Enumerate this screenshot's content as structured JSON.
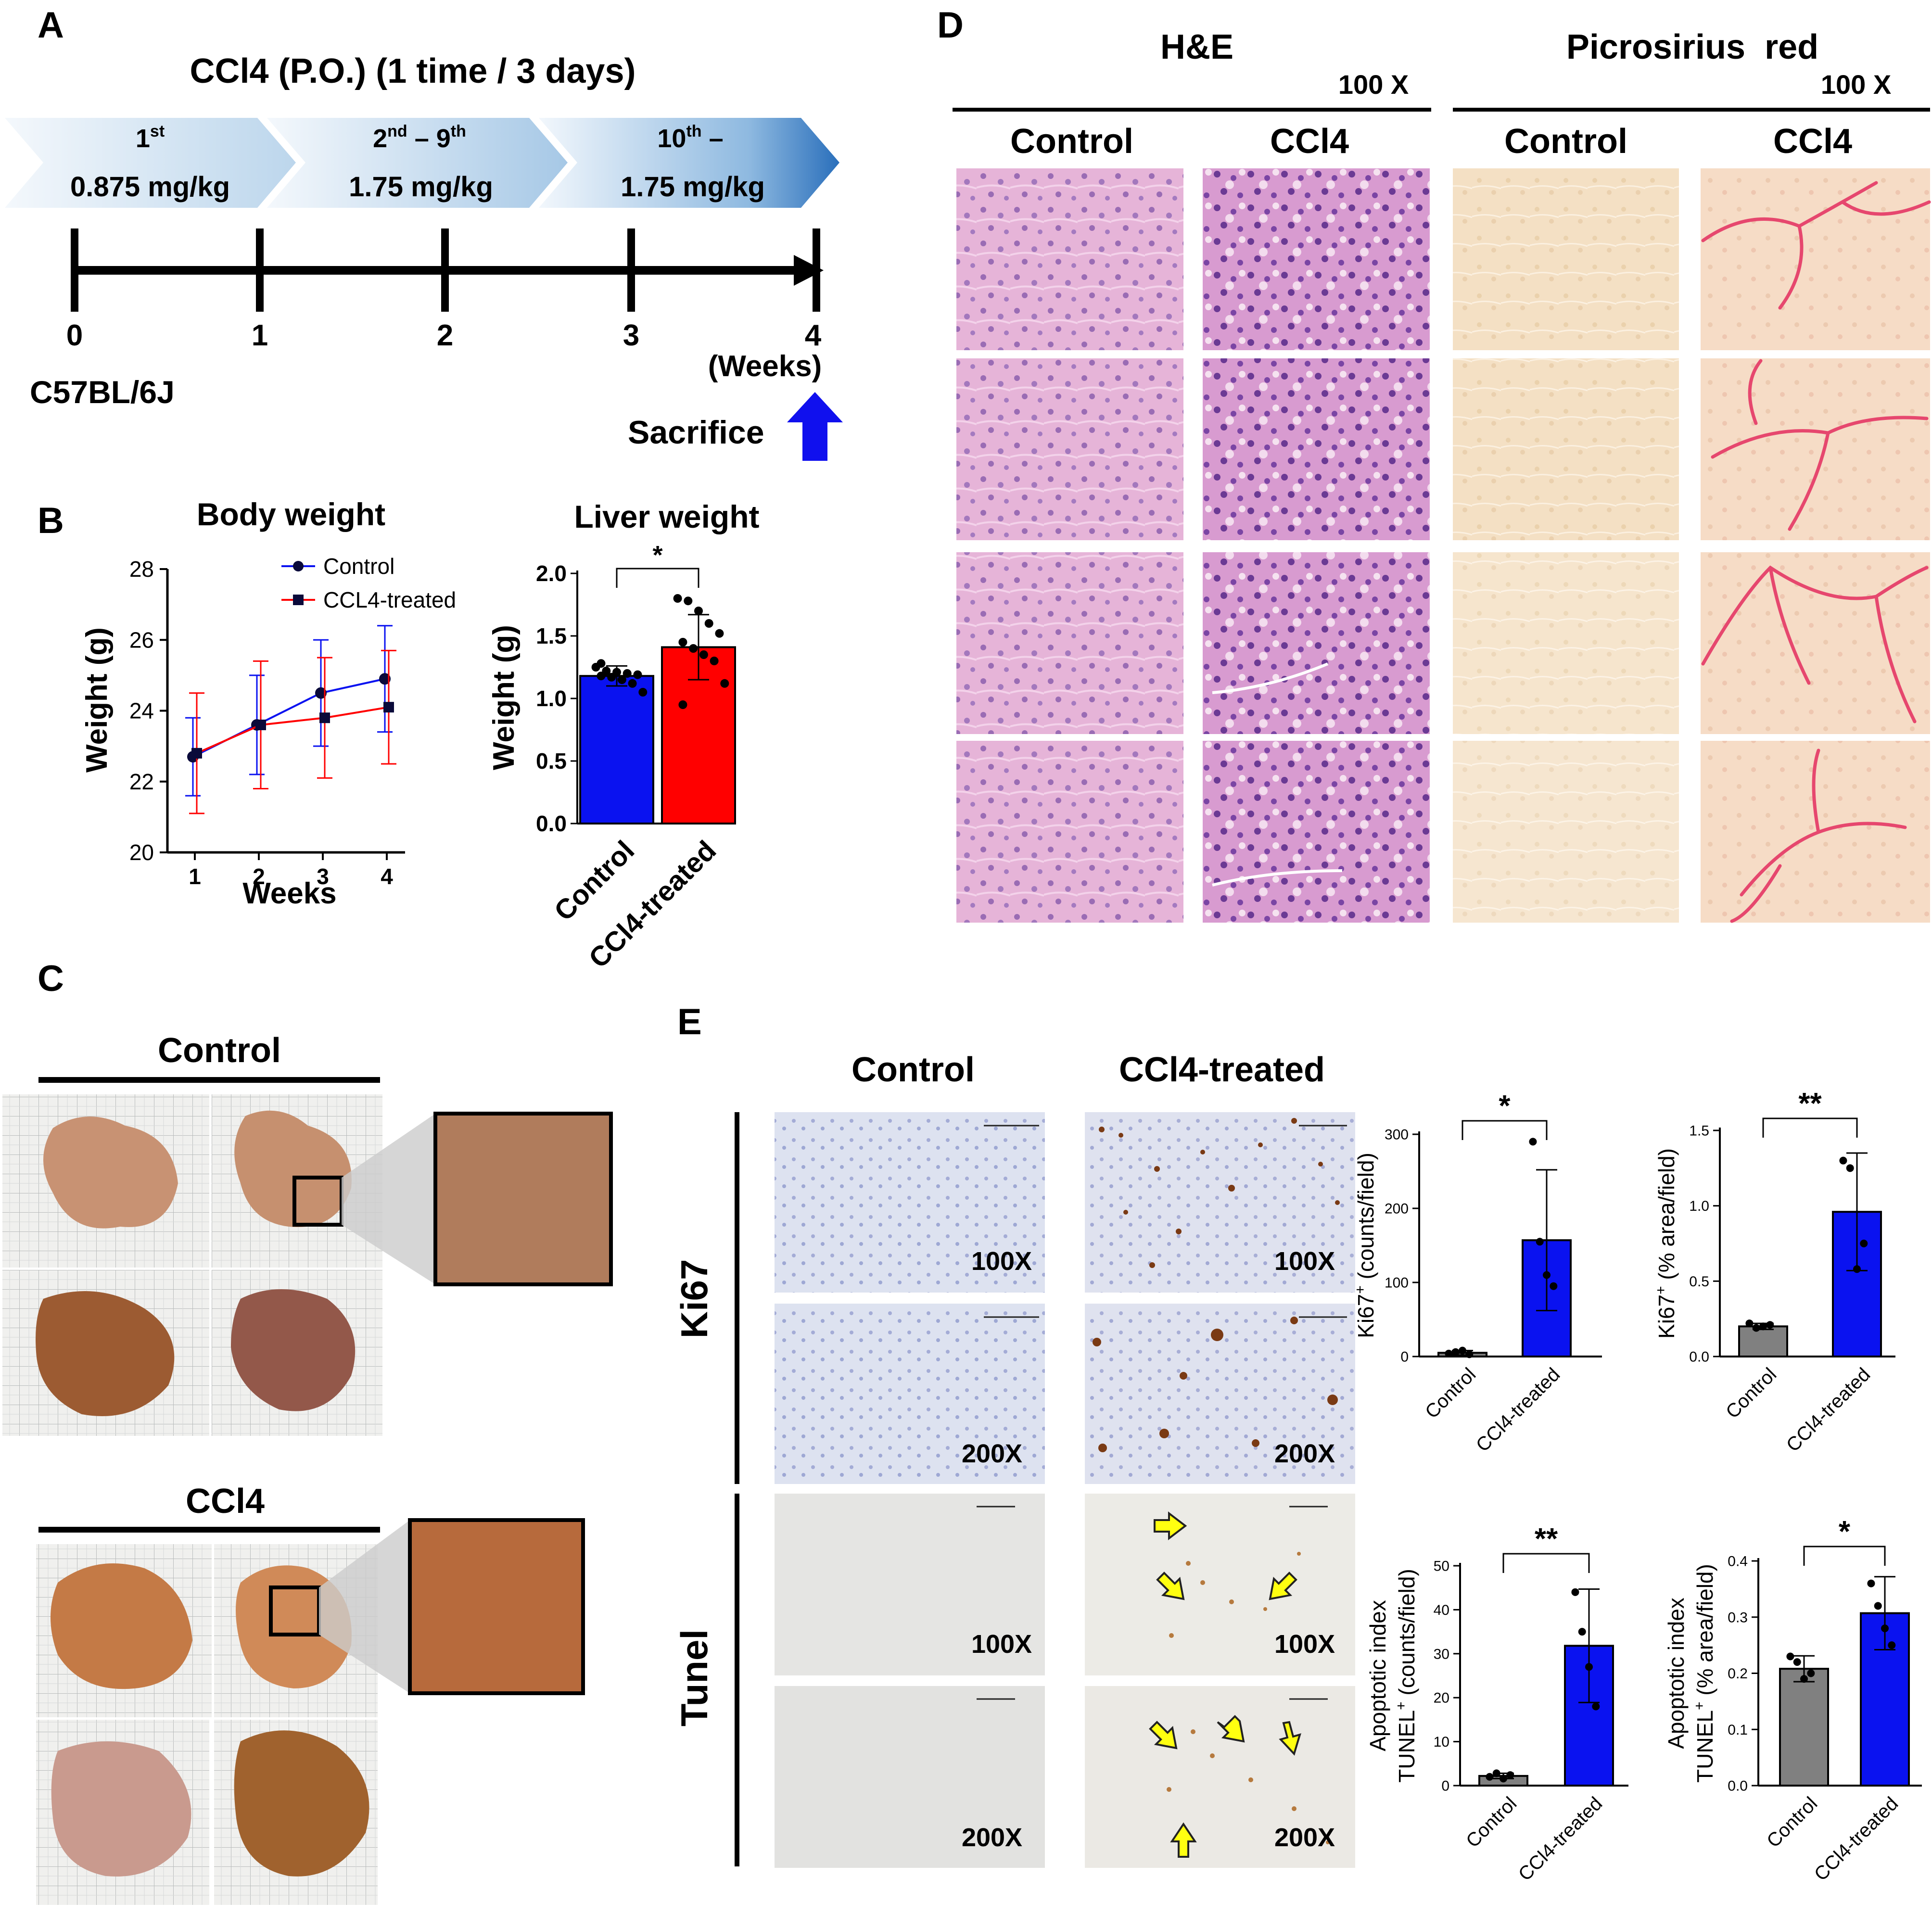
{
  "panel_letters": {
    "a": "A",
    "b": "B",
    "c": "C",
    "d": "D",
    "e": "E"
  },
  "panelA": {
    "title": "CCl4 (P.O.) (1 time / 3 days)",
    "doses": [
      {
        "ord_num": "1",
        "ord_sup": "st",
        "ord_tail": "",
        "ord_tail_sup": "",
        "dose": "0.875 mg/kg"
      },
      {
        "ord_num": "2",
        "ord_sup": "nd",
        "ord_tail": " – 9",
        "ord_tail_sup": "th",
        "dose": "1.75 mg/kg"
      },
      {
        "ord_num": "10",
        "ord_sup": "th",
        "ord_tail": " –",
        "ord_tail_sup": "",
        "dose": "1.75 mg/kg"
      }
    ],
    "ticks": [
      "0",
      "1",
      "2",
      "3",
      "4"
    ],
    "unit": "(Weeks)",
    "strain": "C57BL/6J",
    "sacrifice": "Sacrifice",
    "arrow_color": "#1010ee"
  },
  "panelB": {
    "body_title": "Body weight",
    "liver_title": "Liver weight",
    "sig": "*"
  },
  "panelC": {
    "control_label": "Control",
    "ccl4_label": "CCl4"
  },
  "panelD": {
    "he_label": "H&E",
    "ps_label": "Picrosirius  red",
    "mag1": "100 X",
    "mag2": "100 X",
    "cols": [
      "Control",
      "CCl4",
      "Control",
      "CCl4"
    ]
  },
  "panelE": {
    "col_control": "Control",
    "col_ccl4": "CCl4-treated",
    "row_ki67": "Ki67",
    "row_tunel": "Tunel",
    "mags": [
      "100X",
      "100X",
      "200X",
      "200X",
      "100X",
      "100X",
      "200X",
      "200X"
    ],
    "sigs": [
      "*",
      "**",
      "**",
      "*"
    ]
  },
  "colors": {
    "blue": "#0a12f0",
    "red": "#ff0000",
    "grey": "#808080"
  },
  "chart_data": [
    {
      "type": "line",
      "title": "Body weight",
      "xlabel": "Weeks",
      "ylabel": "Weight  (g)",
      "x": [
        1,
        2,
        3,
        4
      ],
      "xticks": [
        "1",
        "2",
        "3",
        "4"
      ],
      "yticks": [
        "20",
        "22",
        "24",
        "26",
        "28"
      ],
      "ylim": [
        20,
        28
      ],
      "legend_position": "top-right",
      "series": [
        {
          "name": "Control",
          "values": [
            22.7,
            23.6,
            24.5,
            24.9
          ],
          "err": [
            1.1,
            1.4,
            1.5,
            1.5
          ]
        },
        {
          "name": "CCL4-treated",
          "values": [
            22.8,
            23.6,
            23.8,
            24.1
          ],
          "err": [
            1.7,
            1.8,
            1.7,
            1.6
          ]
        }
      ]
    },
    {
      "type": "bar",
      "title": "Liver weight",
      "ylabel": "Weight  (g)",
      "categories": [
        "Control",
        "CCl4-treated"
      ],
      "values": [
        1.18,
        1.41
      ],
      "err": [
        0.08,
        0.26
      ],
      "points": [
        [
          1.25,
          1.22,
          1.21,
          1.2,
          1.19,
          1.18,
          1.17,
          1.15,
          1.12,
          1.05,
          1.28
        ],
        [
          1.8,
          1.78,
          1.7,
          1.6,
          1.52,
          1.45,
          1.4,
          1.35,
          1.3,
          1.12,
          0.95
        ]
      ],
      "yticks": [
        "0.0",
        "0.5",
        "1.0",
        "1.5",
        "2.0"
      ],
      "ylim": [
        0,
        2
      ],
      "significance": "*"
    },
    {
      "type": "bar",
      "ylabel_main": "Ki67",
      "ylabel_sup": "+",
      "ylabel_tail": " (counts/field)",
      "categories": [
        "Control",
        "CCl4-treated"
      ],
      "values": [
        5,
        157
      ],
      "err": [
        3,
        95
      ],
      "points": [
        [
          4,
          6,
          8,
          3
        ],
        [
          290,
          155,
          110,
          95
        ]
      ],
      "yticks": [
        "0",
        "100",
        "200",
        "300"
      ],
      "ylim": [
        0,
        300
      ],
      "significance": "*"
    },
    {
      "type": "bar",
      "ylabel_main": "Ki67",
      "ylabel_sup": "+",
      "ylabel_tail": " (% area/field)",
      "categories": [
        "Control",
        "CCl4-treated"
      ],
      "values": [
        0.2,
        0.96
      ],
      "err": [
        0.02,
        0.39
      ],
      "points": [
        [
          0.22,
          0.19,
          0.2,
          0.21
        ],
        [
          1.3,
          1.25,
          0.58,
          0.75
        ]
      ],
      "yticks": [
        "0.0",
        "0.5",
        "1.0",
        "1.5"
      ],
      "ylim": [
        0,
        1.5
      ],
      "significance": "**"
    },
    {
      "type": "bar",
      "ylabel_top": "Apoptotic index",
      "ylabel_main": "TUNEL",
      "ylabel_sup": "+",
      "ylabel_tail": " (counts/field)",
      "categories": [
        "Control",
        "CCl4-treated"
      ],
      "values": [
        2.2,
        31.8
      ],
      "err": [
        0.6,
        12.9
      ],
      "points": [
        [
          2,
          2.8,
          1.6,
          2.4
        ],
        [
          44,
          35,
          27,
          18
        ]
      ],
      "yticks": [
        "0",
        "10",
        "20",
        "30",
        "40",
        "50"
      ],
      "ylim": [
        0,
        50
      ],
      "significance": "**"
    },
    {
      "type": "bar",
      "ylabel_top": "Apoptotic index",
      "ylabel_main": "TUNEL",
      "ylabel_sup": "+",
      "ylabel_tail": " (% area/field)",
      "categories": [
        "Control",
        "CCl4-treated"
      ],
      "values": [
        0.208,
        0.307
      ],
      "err": [
        0.023,
        0.065
      ],
      "points": [
        [
          0.23,
          0.22,
          0.19,
          0.2
        ],
        [
          0.36,
          0.32,
          0.28,
          0.25
        ]
      ],
      "yticks": [
        "0.0",
        "0.1",
        "0.2",
        "0.3",
        "0.4"
      ],
      "ylim": [
        0,
        0.4
      ],
      "significance": "*"
    }
  ]
}
